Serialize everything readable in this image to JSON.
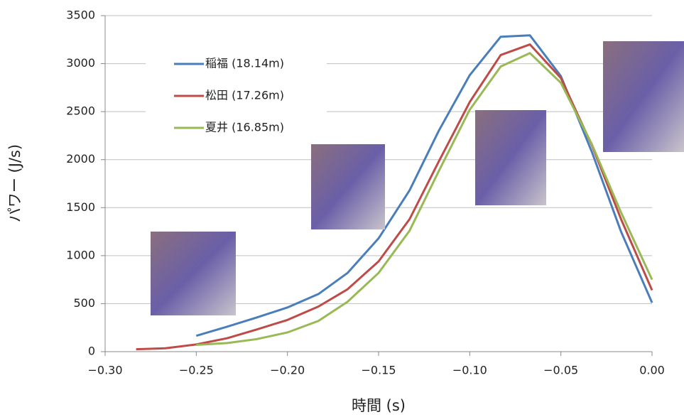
{
  "chart_data": {
    "type": "line",
    "x_label": "時間 (s)",
    "y_label": "パワー (J/s)",
    "x": [
      -0.283,
      -0.267,
      -0.25,
      -0.233,
      -0.217,
      -0.2,
      -0.183,
      -0.167,
      -0.15,
      -0.133,
      -0.117,
      -0.1,
      -0.083,
      -0.067,
      -0.05,
      -0.033,
      -0.017,
      0
    ],
    "series": [
      {
        "name": "稲福 (18.14m)",
        "color": "#4a7ebb",
        "values": [
          null,
          null,
          165,
          260,
          355,
          460,
          600,
          820,
          1180,
          1680,
          2300,
          2880,
          3280,
          3295,
          2870,
          2080,
          1250,
          510
        ]
      },
      {
        "name": "松田 (17.26m)",
        "color": "#be4b48",
        "values": [
          25,
          35,
          75,
          140,
          230,
          330,
          470,
          650,
          940,
          1380,
          1980,
          2600,
          3090,
          3200,
          2850,
          2150,
          1380,
          640
        ]
      },
      {
        "name": "夏井 (16.85m)",
        "color": "#98b954",
        "values": [
          null,
          null,
          70,
          90,
          130,
          200,
          320,
          520,
          820,
          1260,
          1880,
          2520,
          2970,
          3110,
          2800,
          2160,
          1450,
          750
        ]
      }
    ],
    "xlim": [
      -0.3,
      0
    ],
    "xticks": [
      {
        "value": -0.3,
        "label": "−0.30"
      },
      {
        "value": -0.25,
        "label": "−0.25"
      },
      {
        "value": -0.2,
        "label": "−0.20"
      },
      {
        "value": -0.15,
        "label": "−0.15"
      },
      {
        "value": -0.1,
        "label": "−0.10"
      },
      {
        "value": -0.05,
        "label": "−0.05"
      },
      {
        "value": 0,
        "label": "0.00"
      }
    ],
    "ylim": [
      0,
      3500
    ],
    "yticks": [
      0,
      500,
      1000,
      1500,
      2000,
      2500,
      3000,
      3500
    ],
    "grid": true,
    "legend": "upper-left"
  }
}
